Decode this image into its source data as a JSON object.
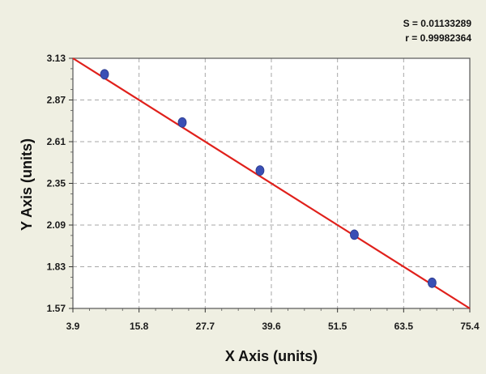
{
  "chart_data": {
    "type": "scatter",
    "xlabel": "X Axis (units)",
    "ylabel": "Y Axis (units)",
    "xlim": [
      3.9,
      75.4
    ],
    "ylim": [
      1.57,
      3.13
    ],
    "x_ticks": [
      "3.9",
      "15.8",
      "27.7",
      "39.6",
      "51.5",
      "63.5",
      "75.4"
    ],
    "y_ticks": [
      "1.57",
      "1.83",
      "2.09",
      "2.35",
      "2.61",
      "2.87",
      "3.13"
    ],
    "grid": true,
    "stats": {
      "s_text": "S = 0.01133289",
      "r_text": "r = 0.99982364"
    },
    "series": [
      {
        "values": [
          {
            "x": 9.6,
            "y": 3.03
          },
          {
            "x": 23.6,
            "y": 2.73
          },
          {
            "x": 37.6,
            "y": 2.43
          },
          {
            "x": 54.6,
            "y": 2.03
          },
          {
            "x": 68.6,
            "y": 1.73
          }
        ]
      }
    ],
    "fit_line": {
      "x": [
        3.9,
        75.4
      ],
      "y": [
        3.13,
        1.57
      ]
    },
    "colors": {
      "point": "#3a4fb5",
      "line": "#e0201b",
      "grid": "#a7a7a7",
      "plot_bg": "#ffffff",
      "page_bg": "#efefe2"
    }
  }
}
